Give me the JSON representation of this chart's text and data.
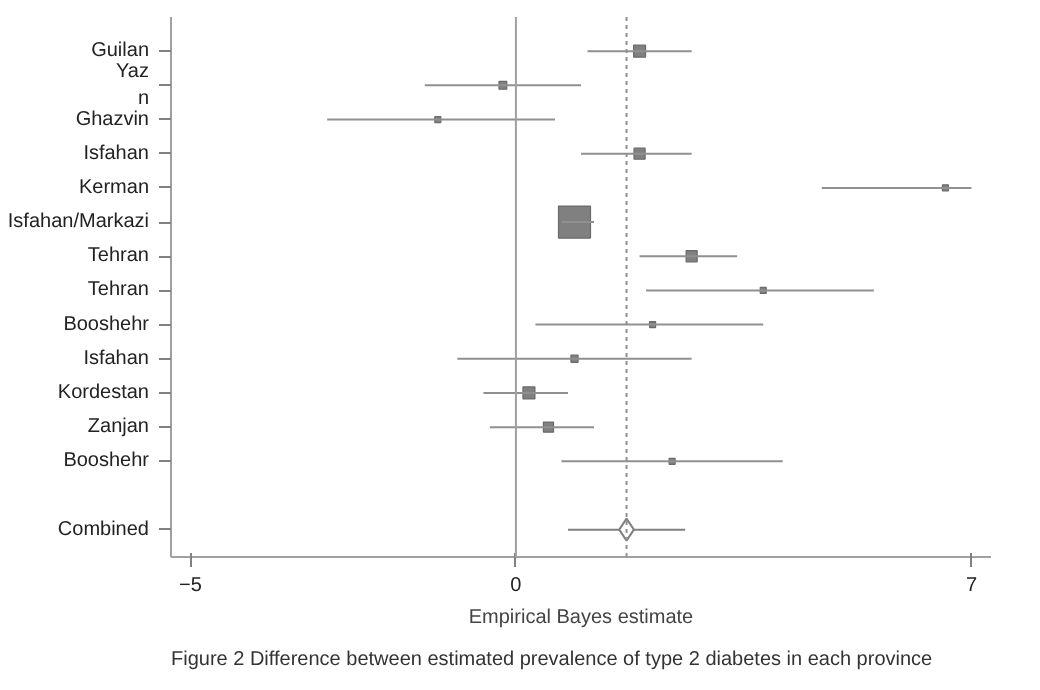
{
  "chart_data": {
    "type": "bubble",
    "orientation": "horizontal",
    "categories": [
      "Guilan",
      "Yaz\nn",
      "Ghazvin",
      "Isfahan",
      "Kerman",
      "Isfahan/Markazi",
      "Tehran",
      "Tehran",
      "Booshehr",
      "Isfahan",
      "Kordestan",
      "Zanjan",
      "Booshehr",
      "Combined"
    ],
    "series": [
      {
        "color": "#808080",
        "marker": "square",
        "values": [
          1.9,
          -0.2,
          -1.2,
          1.9,
          6.6,
          0.9,
          2.7,
          3.8,
          2.1,
          0.9,
          0.2,
          0.5,
          2.4,
          null
        ],
        "errors": [
          [
            1.1,
            2.7
          ],
          [
            -1.4,
            1.0
          ],
          [
            -2.9,
            0.6
          ],
          [
            1.0,
            2.7
          ],
          [
            4.7,
            7.0
          ],
          [
            0.7,
            1.2
          ],
          [
            1.9,
            3.4
          ],
          [
            2.0,
            5.5
          ],
          [
            0.3,
            3.8
          ],
          [
            -0.9,
            2.7
          ],
          [
            -0.5,
            0.8
          ],
          [
            -0.4,
            1.2
          ],
          [
            0.7,
            4.1
          ],
          null
        ],
        "sizes": [
          0.14,
          0.06,
          0.03,
          0.12,
          0.03,
          1,
          0.12,
          0.02,
          0.03,
          0.05,
          0.14,
          0.1,
          0.03,
          null
        ]
      },
      {
        "color": "#ffffff",
        "marker": "diamond",
        "values": [
          null,
          null,
          null,
          null,
          null,
          null,
          null,
          null,
          null,
          null,
          null,
          null,
          null,
          1.7
        ],
        "errors": [
          null,
          null,
          null,
          null,
          null,
          null,
          null,
          null,
          null,
          null,
          null,
          null,
          null,
          [
            0.8,
            2.6
          ]
        ]
      }
    ],
    "xlim": [
      -5.3,
      7.3
    ],
    "xticks": [
      -5,
      0,
      7
    ],
    "xlabel": "Empirical Bayes estimate",
    "ref_lines": [
      {
        "axis": "x",
        "value": 0,
        "color": "#a0a0a0",
        "line_style": "solid"
      },
      {
        "axis": "x",
        "value": 1.7,
        "color": "#909090",
        "line_style": "dashed"
      }
    ],
    "grid": false,
    "annotations": [
      "Figure 2 Difference between estimated prevalence of type 2 diabetes in each province"
    ]
  }
}
